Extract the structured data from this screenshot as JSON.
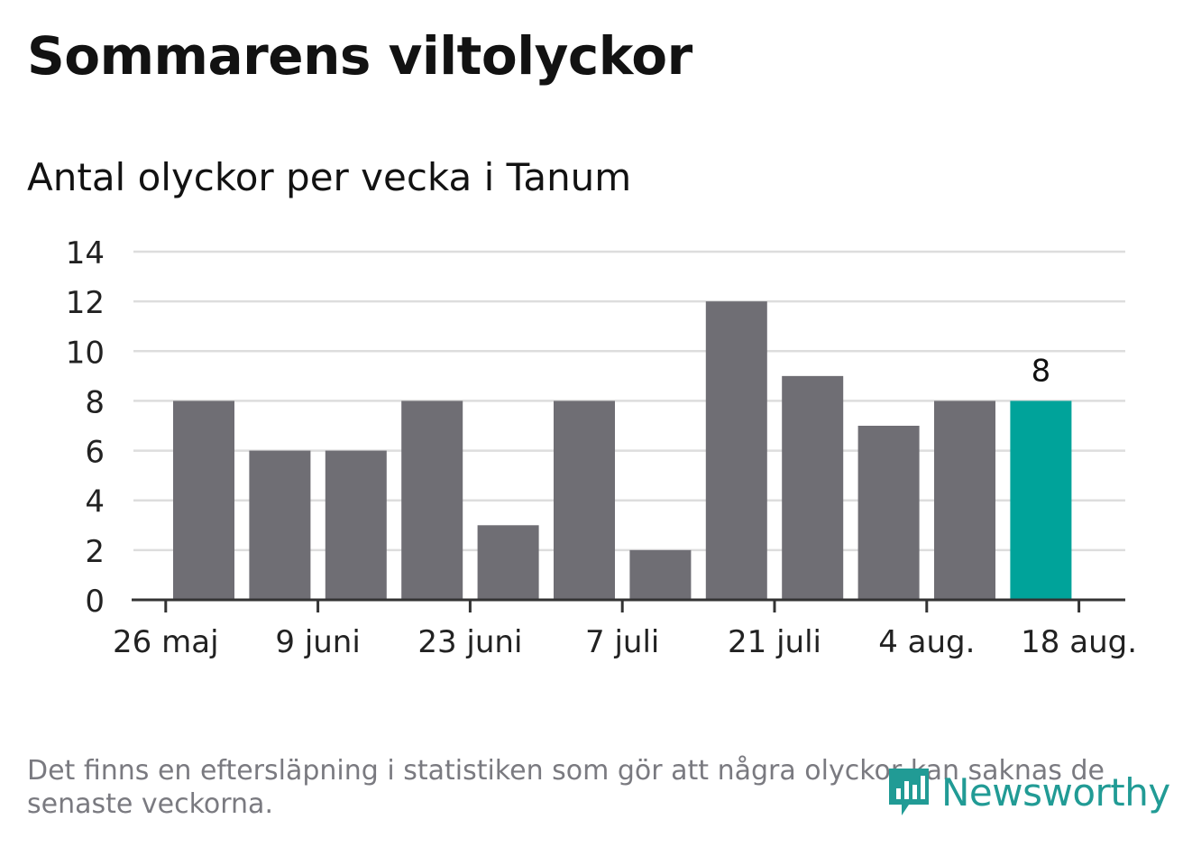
{
  "title": "Sommarens viltolyckor",
  "subtitle": "Antal olyckor per vecka i Tanum",
  "note": "Det finns en eftersläpning i statistiken som gör att några olyckor kan saknas de senaste veckorna.",
  "brand": {
    "name": "Newsworthy",
    "icon": "bar-chart-speech-bubble-icon",
    "color": "#219b95"
  },
  "colors": {
    "bar": "#6f6e74",
    "highlight": "#00a39a",
    "grid": "#dddddd",
    "axis": "#333333"
  },
  "chart_data": {
    "type": "bar",
    "title": "Antal olyckor per vecka i Tanum",
    "xlabel": "",
    "ylabel": "",
    "ylim": [
      0,
      14
    ],
    "yticks": [
      0,
      2,
      4,
      6,
      8,
      10,
      12,
      14
    ],
    "grid": true,
    "x_ticks": [
      {
        "label": "26 maj",
        "at_bar": -0.5
      },
      {
        "label": "9 juni",
        "at_bar": 1.5
      },
      {
        "label": "23 juni",
        "at_bar": 3.5
      },
      {
        "label": "7 juli",
        "at_bar": 5.5
      },
      {
        "label": "21 juli",
        "at_bar": 7.5
      },
      {
        "label": "4 aug.",
        "at_bar": 9.5
      },
      {
        "label": "18 aug.",
        "at_bar": 11.5
      }
    ],
    "values": [
      8,
      6,
      6,
      8,
      3,
      8,
      2,
      12,
      9,
      7,
      8,
      8
    ],
    "highlight_index": 11,
    "highlight_label": "8"
  }
}
